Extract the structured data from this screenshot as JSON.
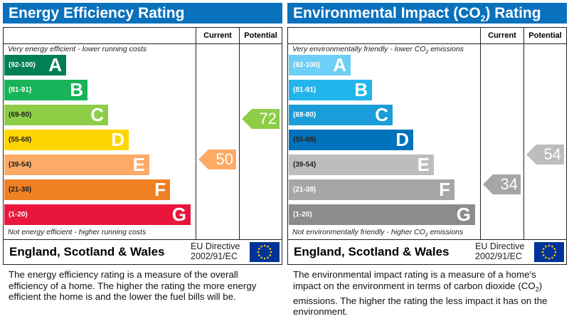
{
  "left": {
    "title": "Energy Efficiency Rating",
    "current_label": "Current",
    "potential_label": "Potential",
    "top_note": "Very energy efficient - lower running costs",
    "bottom_note": "Not energy efficient - higher running costs",
    "bands": [
      {
        "range": "(92-100)",
        "letter": "A",
        "color": "#008054"
      },
      {
        "range": "(81-91)",
        "letter": "B",
        "color": "#19b459"
      },
      {
        "range": "(69-80)",
        "letter": "C",
        "color": "#8dce46"
      },
      {
        "range": "(55-68)",
        "letter": "D",
        "color": "#ffd500"
      },
      {
        "range": "(39-54)",
        "letter": "E",
        "color": "#fcaa65"
      },
      {
        "range": "(21-38)",
        "letter": "F",
        "color": "#ef8023"
      },
      {
        "range": "(1-20)",
        "letter": "G",
        "color": "#e9153b"
      }
    ],
    "current": {
      "value": "50",
      "color": "#fcaa65"
    },
    "potential": {
      "value": "72",
      "color": "#8dce46"
    },
    "region": "England, Scotland & Wales",
    "directive_line1": "EU Directive",
    "directive_line2": "2002/91/EC",
    "description": "The energy efficiency rating is a measure of the overall efficiency of a home. The higher the rating the more energy efficient the home is and the lower the fuel bills will be."
  },
  "right": {
    "title_pre": "Environmental Impact (CO",
    "title_sub": "2",
    "title_post": ") Rating",
    "current_label": "Current",
    "potential_label": "Potential",
    "top_note_pre": "Very environmentally friendly - lower CO",
    "top_note_post": " emissions",
    "bottom_note_pre": "Not environmentally friendly - higher CO",
    "bottom_note_post": " emissions",
    "sub2": "2",
    "bands": [
      {
        "range": "(92-100)",
        "letter": "A",
        "color": "#6ecff6"
      },
      {
        "range": "(81-91)",
        "letter": "B",
        "color": "#22b5ec"
      },
      {
        "range": "(69-80)",
        "letter": "C",
        "color": "#1a9dd9"
      },
      {
        "range": "(55-68)",
        "letter": "D",
        "color": "#0072bc"
      },
      {
        "range": "(39-54)",
        "letter": "E",
        "color": "#bbbdbf"
      },
      {
        "range": "(21-38)",
        "letter": "F",
        "color": "#a4a6a8"
      },
      {
        "range": "(1-20)",
        "letter": "G",
        "color": "#8a8c8e"
      }
    ],
    "current": {
      "value": "34",
      "color": "#a4a6a8"
    },
    "potential": {
      "value": "54",
      "color": "#bbbdbf"
    },
    "region": "England, Scotland & Wales",
    "directive_line1": "EU Directive",
    "directive_line2": "2002/91/EC",
    "description_pre": "The environmental impact rating is a measure of a home's impact on the environment in terms of carbon dioxide (CO",
    "description_post": ") emissions. The higher the rating the less impact it has on the environment."
  }
}
